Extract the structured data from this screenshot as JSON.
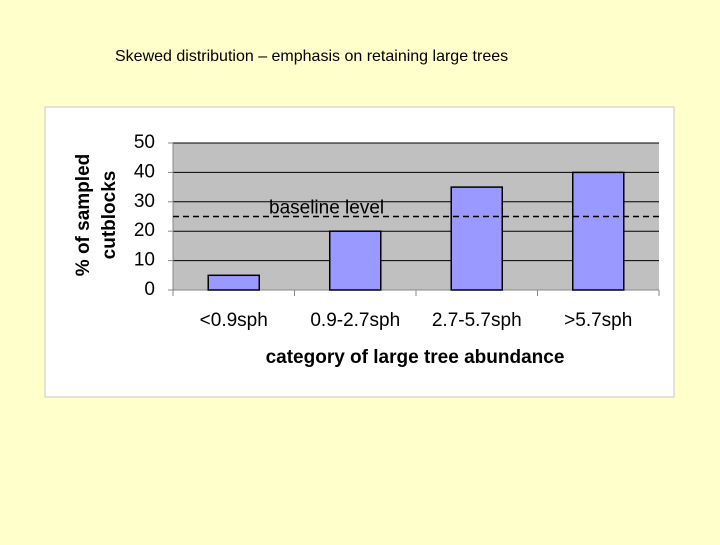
{
  "chart_data": {
    "type": "bar",
    "title": "Skewed distribution – emphasis on retaining large trees",
    "xlabel": "category of large tree abundance",
    "ylabel": [
      "% of sampled",
      "cutblocks"
    ],
    "categories": [
      "<0.9sph",
      "0.9-2.7sph",
      "2.7-5.7sph",
      ">5.7sph"
    ],
    "values": [
      5,
      20,
      35,
      40
    ],
    "color": "#9999ff",
    "ylim": [
      0,
      50
    ],
    "yticks": [
      0,
      10,
      20,
      30,
      40,
      50
    ],
    "grid": true,
    "reference_line": {
      "value": 25,
      "label": "baseline level"
    }
  }
}
